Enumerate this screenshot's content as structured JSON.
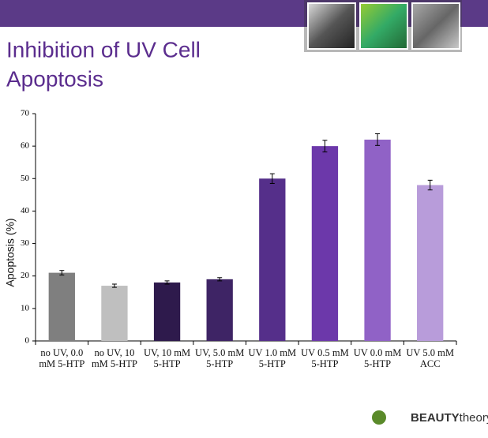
{
  "chart_data": {
    "type": "bar",
    "title_lines": [
      "Inhibition of UV Cell",
      "Apoptosis"
    ],
    "y_label": "Apoptosis (%)",
    "categories": [
      "no UV, 0.0 mM 5-HTP",
      "no UV, 10 mM 5-HTP",
      "UV, 10 mM 5-HTP",
      "UV, 5.0 mM 5-HTP",
      "UV 1.0 mM 5-HTP",
      "UV 0.5 mM 5-HTP",
      "UV 0.0 mM 5-HTP",
      "UV 5.0 mM ACC"
    ],
    "values": [
      21,
      17,
      18,
      19,
      50,
      60,
      62,
      48
    ],
    "errors": [
      0.7,
      0.5,
      0.5,
      0.5,
      1.5,
      1.8,
      1.8,
      1.5
    ],
    "colors": [
      "#7f7f7f",
      "#bfbfbf",
      "#2e1a4c",
      "#3e2465",
      "#552f8a",
      "#6c38aa",
      "#9062c6",
      "#b89cda"
    ],
    "ylim": [
      0,
      70
    ],
    "yticks": [
      0,
      10,
      20,
      30,
      40,
      50,
      60,
      70
    ],
    "grid": false
  },
  "logo": {
    "strong": "BEAUTY",
    "light": "theory"
  }
}
